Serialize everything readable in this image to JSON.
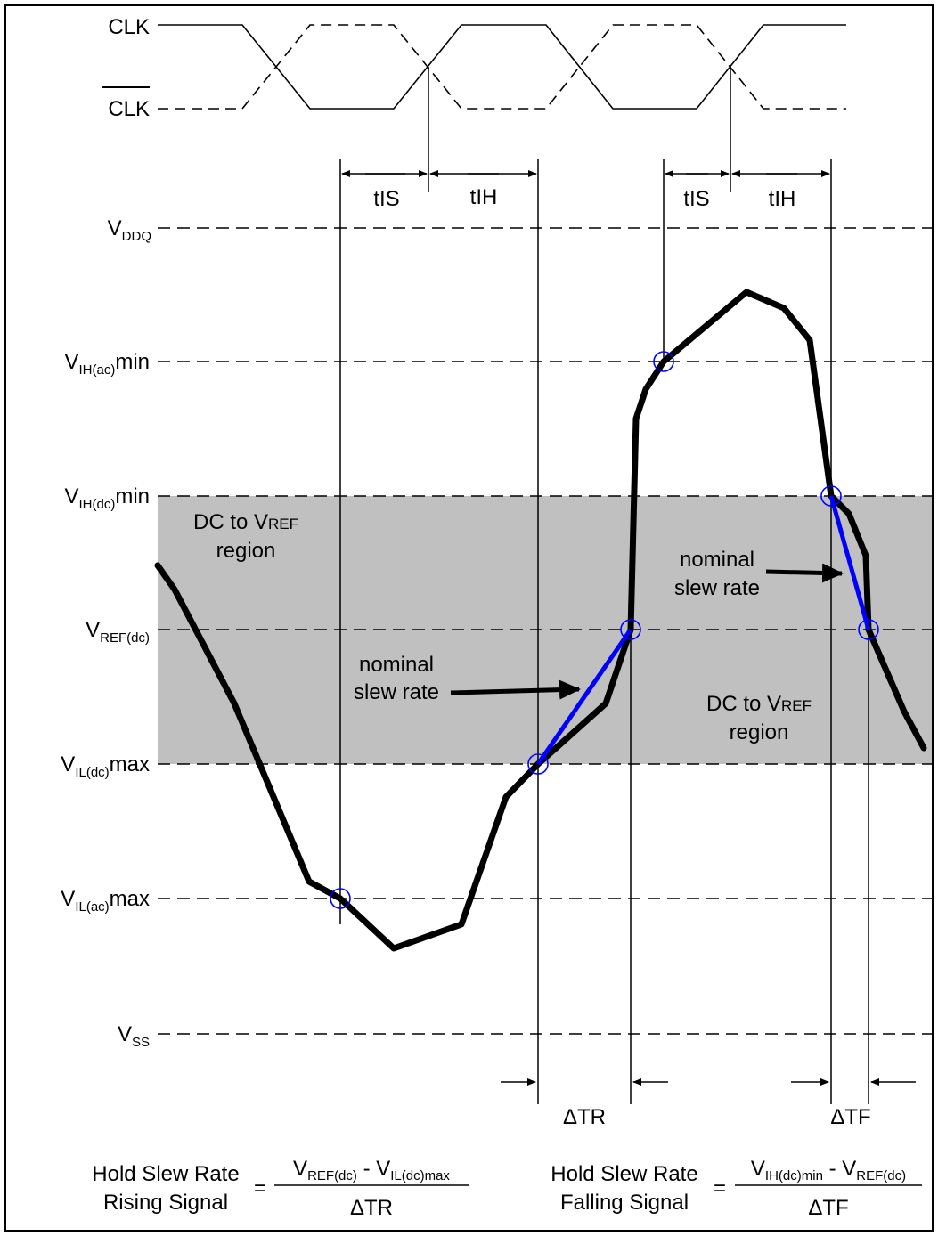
{
  "clock": {
    "clk": "CLK",
    "clk_bar": "CLK"
  },
  "timing": {
    "tis": "tIS",
    "tih": "tIH"
  },
  "levels": {
    "vddq": {
      "main": "V",
      "sub": "DDQ",
      "suffix": ""
    },
    "vih_ac": {
      "main": "V",
      "sub": "IH(ac)",
      "suffix": "min"
    },
    "vih_dc": {
      "main": "V",
      "sub": "IH(dc)",
      "suffix": "min"
    },
    "vref_dc": {
      "main": "V",
      "sub": "REF(dc)",
      "suffix": ""
    },
    "vil_dc": {
      "main": "V",
      "sub": "IL(dc)",
      "suffix": "max"
    },
    "vil_ac": {
      "main": "V",
      "sub": "IL(ac)",
      "suffix": "max"
    },
    "vss": {
      "main": "V",
      "sub": "SS",
      "suffix": ""
    }
  },
  "regions": {
    "left": {
      "line1_a": "DC to V",
      "line1_b": "REF",
      "line2": "region"
    },
    "right": {
      "line1_a": "DC to V",
      "line1_b": "REF",
      "line2": "region"
    }
  },
  "annotations": {
    "rising": {
      "line1": "nominal",
      "line2": "slew rate"
    },
    "falling": {
      "line1": "nominal",
      "line2": "slew rate"
    }
  },
  "deltas": {
    "tr": "ΔTR",
    "tf": "ΔTF"
  },
  "formulas": {
    "rising": {
      "label1": "Hold Slew Rate",
      "label2": "Rising Signal",
      "equals": "=",
      "num_a": "V",
      "num_a_sub": "REF(dc)",
      "num_op": " - ",
      "num_b": "V",
      "num_b_sub": "IL(dc)max",
      "den": "ΔTR"
    },
    "falling": {
      "label1": "Hold Slew Rate",
      "label2": "Falling Signal",
      "equals": "=",
      "num_a": "V",
      "num_a_sub": "IH(dc)min",
      "num_op": " - ",
      "num_b": "V",
      "num_b_sub": "REF(dc)",
      "den": "ΔTF"
    }
  },
  "colors": {
    "signal": "#000000",
    "slew": "#0000ff",
    "region": "#c0c0c0",
    "marker": "#0000ff"
  }
}
